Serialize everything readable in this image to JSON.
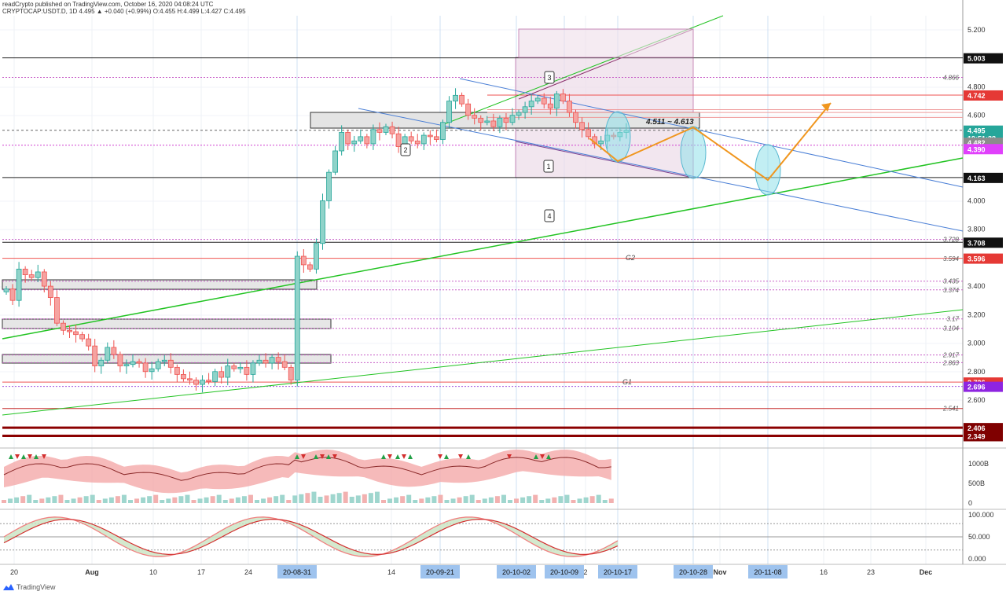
{
  "header": {
    "line1": "readCrypto published on TradingView.com, October 16, 2020 04:08:24 UTC",
    "line2": "CRYPTOCAP:USDT.D, 1D 4.495 ▲ +0.040 (+0.99%) O:4.455 H:4.499 L:4.427 C:4.495"
  },
  "watermark": "TradingView",
  "colors": {
    "up": "#26a69a",
    "down": "#ef5350",
    "trendline_green": "#22c322",
    "channel_blue": "#4a7fd6",
    "projection_orange": "#f0961e",
    "ellipse": "#8fe0ea",
    "box_purple": "#c98bb9"
  },
  "chart_data": {
    "type": "candlestick",
    "symbol": "CRYPTOCAP:USDT.D",
    "timeframe": "1D",
    "price_axis": {
      "ticks": [
        "5.200",
        "4.800",
        "4.600",
        "4.000",
        "3.800",
        "3.400",
        "3.200",
        "3.000",
        "2.800",
        "2.600"
      ],
      "range": [
        2.3,
        5.3
      ]
    },
    "time_axis": {
      "labels": [
        "20",
        "Aug",
        "10",
        "17",
        "24",
        "20-08-31",
        "14",
        "20-09-21",
        "20-10-02",
        "20-10-09",
        "2",
        "20-10-17",
        "20-10-28",
        "Nov",
        "20-11-08",
        "16",
        "23",
        "Dec"
      ],
      "highlighted": [
        "20-08-31",
        "20-09-21",
        "20-10-02",
        "20-10-09",
        "20-10-17",
        "20-10-28",
        "20-11-08"
      ]
    },
    "price_tags": [
      {
        "label": "5.003",
        "value": 5.003,
        "style": "black"
      },
      {
        "label": "4.742",
        "value": 4.742,
        "style": "red"
      },
      {
        "label": "4.495",
        "value": 4.495,
        "style": "teal"
      },
      {
        "label": "19:51:38",
        "value": 4.44,
        "style": "teal"
      },
      {
        "label": "4.482",
        "value": 4.41,
        "style": "gray"
      },
      {
        "label": "4.390",
        "value": 4.365,
        "style": "magenta"
      },
      {
        "label": "4.163",
        "value": 4.163,
        "style": "black"
      },
      {
        "label": "3.708",
        "value": 3.708,
        "style": "black"
      },
      {
        "label": "3.596",
        "value": 3.596,
        "style": "red"
      },
      {
        "label": "2.726",
        "value": 2.726,
        "style": "red"
      },
      {
        "label": "2.696",
        "value": 2.696,
        "style": "purple"
      },
      {
        "label": "2.406",
        "value": 2.406,
        "style": "darkred"
      },
      {
        "label": "2.349",
        "value": 2.349,
        "style": "darkred"
      }
    ],
    "level_labels": [
      {
        "label": "4.866",
        "value": 4.866
      },
      {
        "label": "3.728",
        "value": 3.728
      },
      {
        "label": "3.594",
        "value": 3.594
      },
      {
        "label": "3.435",
        "value": 3.435
      },
      {
        "label": "3.374",
        "value": 3.374
      },
      {
        "label": "3.17",
        "value": 3.17
      },
      {
        "label": "3.104",
        "value": 3.104
      },
      {
        "label": "2.917",
        "value": 2.917
      },
      {
        "label": "2.863",
        "value": 2.863
      },
      {
        "label": "2.541",
        "value": 2.541
      }
    ],
    "annotations": {
      "range_label": "4.511 ~ 4.613",
      "g2": "G2",
      "g1": "G1",
      "points": [
        "1",
        "2",
        "3",
        "4"
      ]
    },
    "closes": [
      3.38,
      3.3,
      3.52,
      3.48,
      3.46,
      3.5,
      3.4,
      3.32,
      3.14,
      3.09,
      3.08,
      3.06,
      3.03,
      2.98,
      2.84,
      2.88,
      2.97,
      2.92,
      2.84,
      2.85,
      2.87,
      2.86,
      2.8,
      2.82,
      2.87,
      2.88,
      2.83,
      2.78,
      2.75,
      2.74,
      2.71,
      2.74,
      2.73,
      2.8,
      2.76,
      2.84,
      2.82,
      2.83,
      2.78,
      2.86,
      2.88,
      2.86,
      2.9,
      2.87,
      2.83,
      2.74,
      3.61,
      3.55,
      3.52,
      3.7,
      4.0,
      4.2,
      4.35,
      4.48,
      4.4,
      4.42,
      4.45,
      4.4,
      4.5,
      4.48,
      4.52,
      4.47,
      4.38,
      4.45,
      4.42,
      4.4,
      4.46,
      4.45,
      4.43,
      4.55,
      4.7,
      4.74,
      4.68,
      4.6,
      4.58,
      4.55,
      4.56,
      4.52,
      4.58,
      4.55,
      4.6,
      4.62,
      4.66,
      4.7,
      4.72,
      4.68,
      4.65,
      4.75,
      4.7,
      4.62,
      4.55,
      4.5,
      4.45,
      4.4,
      4.42,
      4.46,
      4.45,
      4.48,
      4.495
    ],
    "volume_axis": [
      "1000B",
      "500B",
      "0"
    ],
    "oscillator_axis": [
      "100.000",
      "50.000",
      "0.000"
    ]
  }
}
